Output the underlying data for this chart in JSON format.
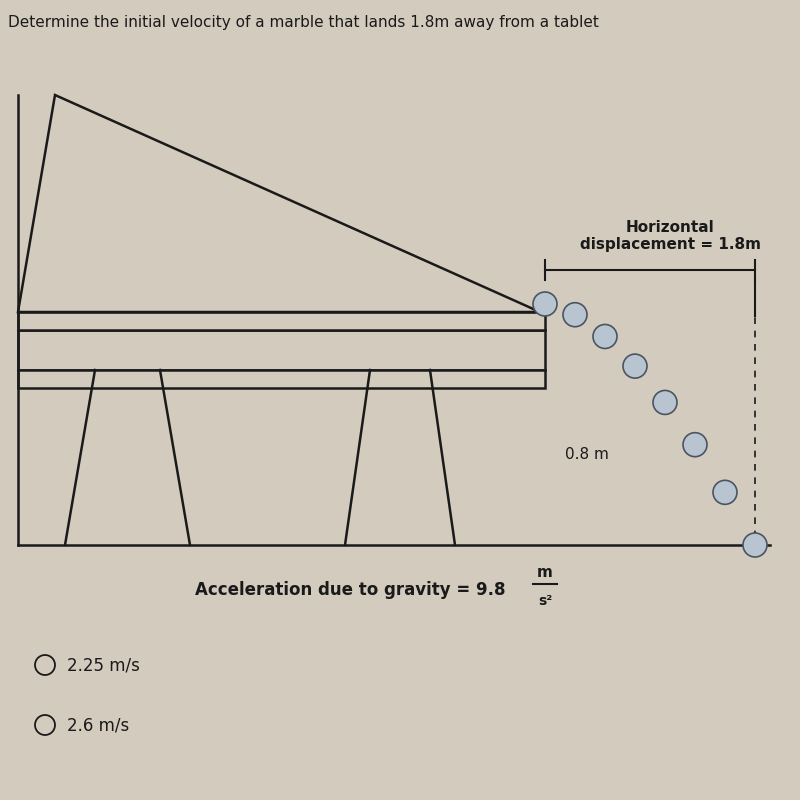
{
  "title": "Determine the initial velocity of a marble that lands 1.8m away from a tablet",
  "bg_color": "#d4cbbf",
  "line_color": "#1a1a1a",
  "marble_fill": "#b8c4d0",
  "marble_edge": "#4a5560",
  "answer1": "2.25 m/s",
  "answer2": "2.6 m/s",
  "horizontal_label": "Horizontal\ndisplacement = 1.8m",
  "vertical_label": "0.8 m",
  "gravity_label": "Acceleration due to gravity = 9.8",
  "gravity_num": "m",
  "gravity_den": "s²"
}
